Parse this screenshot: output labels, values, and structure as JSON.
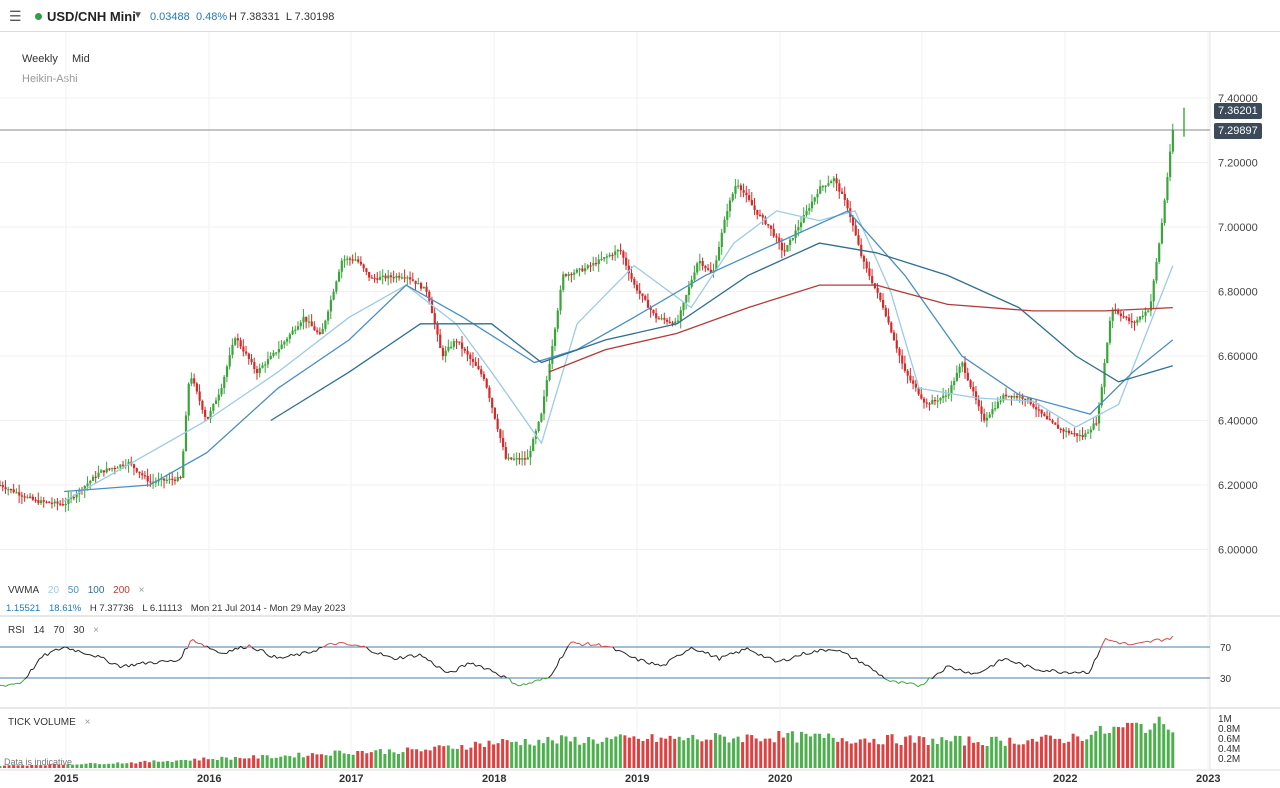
{
  "header": {
    "symbol": "USD/CNH Mini",
    "change": "0.03488",
    "change_pct": "0.48%",
    "high": "H 7.38331",
    "low": "L 7.30198",
    "menu_icon": "hamburger-icon",
    "accent": "#2ea043"
  },
  "chart_opts": {
    "interval": "Weekly",
    "price_type": "Mid",
    "style": "Heikin-Ashi"
  },
  "price_pills": {
    "high": "7.36201",
    "last": "7.29897"
  },
  "vwma": {
    "name": "VWMA",
    "p1": "20",
    "p2": "50",
    "p3": "100",
    "p4": "200",
    "close_icon": "×",
    "stats": {
      "range": "1.15521",
      "range_pct": "18.61%",
      "high": "H 7.37736",
      "low": "L 6.11113",
      "dates": "Mon 21 Jul 2014 - Mon 29 May 2023"
    }
  },
  "rsi": {
    "name": "RSI",
    "period": "14",
    "upper": "70",
    "lower": "30",
    "close_icon": "×"
  },
  "volume": {
    "name": "TICK VOLUME",
    "close_icon": "×",
    "disclaimer": "Data is indicative"
  },
  "chart_data": [
    {
      "type": "candlestick",
      "yticks": [
        "7.40000",
        "7.20000",
        "7.00000",
        "6.80000",
        "6.60000",
        "6.40000",
        "6.20000",
        "6.00000"
      ],
      "ylim": [
        5.95,
        7.45
      ],
      "xticks": [
        "2015",
        "2016",
        "2017",
        "2018",
        "2019",
        "2020",
        "2021",
        "2022",
        "2023"
      ],
      "price_keypoints": [
        [
          2014.55,
          6.2
        ],
        [
          2014.8,
          6.15
        ],
        [
          2015.0,
          6.14
        ],
        [
          2015.25,
          6.24
        ],
        [
          2015.45,
          6.27
        ],
        [
          2015.6,
          6.21
        ],
        [
          2015.82,
          6.22
        ],
        [
          2015.88,
          6.55
        ],
        [
          2016.0,
          6.4
        ],
        [
          2016.1,
          6.5
        ],
        [
          2016.2,
          6.66
        ],
        [
          2016.35,
          6.55
        ],
        [
          2016.5,
          6.62
        ],
        [
          2016.68,
          6.72
        ],
        [
          2016.8,
          6.66
        ],
        [
          2016.95,
          6.9
        ],
        [
          2017.05,
          6.9
        ],
        [
          2017.15,
          6.84
        ],
        [
          2017.4,
          6.85
        ],
        [
          2017.55,
          6.8
        ],
        [
          2017.65,
          6.6
        ],
        [
          2017.75,
          6.65
        ],
        [
          2017.95,
          6.53
        ],
        [
          2018.1,
          6.28
        ],
        [
          2018.25,
          6.28
        ],
        [
          2018.35,
          6.42
        ],
        [
          2018.5,
          6.85
        ],
        [
          2018.65,
          6.87
        ],
        [
          2018.9,
          6.93
        ],
        [
          2019.0,
          6.82
        ],
        [
          2019.15,
          6.72
        ],
        [
          2019.3,
          6.7
        ],
        [
          2019.45,
          6.9
        ],
        [
          2019.55,
          6.85
        ],
        [
          2019.65,
          7.05
        ],
        [
          2019.72,
          7.14
        ],
        [
          2019.85,
          7.05
        ],
        [
          2019.95,
          7.0
        ],
        [
          2020.05,
          6.92
        ],
        [
          2020.15,
          7.0
        ],
        [
          2020.3,
          7.12
        ],
        [
          2020.4,
          7.15
        ],
        [
          2020.5,
          7.06
        ],
        [
          2020.6,
          6.9
        ],
        [
          2020.75,
          6.75
        ],
        [
          2020.9,
          6.55
        ],
        [
          2021.05,
          6.45
        ],
        [
          2021.2,
          6.48
        ],
        [
          2021.3,
          6.58
        ],
        [
          2021.45,
          6.4
        ],
        [
          2021.6,
          6.48
        ],
        [
          2021.75,
          6.47
        ],
        [
          2021.9,
          6.4
        ],
        [
          2022.0,
          6.37
        ],
        [
          2022.15,
          6.35
        ],
        [
          2022.25,
          6.4
        ],
        [
          2022.35,
          6.75
        ],
        [
          2022.5,
          6.7
        ],
        [
          2022.62,
          6.75
        ],
        [
          2022.7,
          7.0
        ],
        [
          2022.78,
          7.3
        ]
      ]
    },
    {
      "type": "line",
      "name": "VWMA",
      "series": [
        {
          "period": "20",
          "color": "#9bcbe6",
          "points": [
            [
              2015.0,
              6.15
            ],
            [
              2016.0,
              6.4
            ],
            [
              2016.5,
              6.55
            ],
            [
              2017.0,
              6.72
            ],
            [
              2017.4,
              6.82
            ],
            [
              2017.75,
              6.7
            ],
            [
              2018.0,
              6.55
            ],
            [
              2018.35,
              6.33
            ],
            [
              2018.6,
              6.7
            ],
            [
              2019.0,
              6.88
            ],
            [
              2019.4,
              6.75
            ],
            [
              2019.7,
              6.95
            ],
            [
              2020.0,
              7.05
            ],
            [
              2020.3,
              7.02
            ],
            [
              2020.55,
              7.05
            ],
            [
              2020.8,
              6.8
            ],
            [
              2021.0,
              6.5
            ],
            [
              2021.4,
              6.47
            ],
            [
              2021.8,
              6.46
            ],
            [
              2022.1,
              6.38
            ],
            [
              2022.4,
              6.45
            ],
            [
              2022.78,
              6.88
            ]
          ]
        },
        {
          "period": "50",
          "color": "#4a8fc2",
          "points": [
            [
              2015.0,
              6.18
            ],
            [
              2015.6,
              6.2
            ],
            [
              2016.0,
              6.3
            ],
            [
              2016.5,
              6.5
            ],
            [
              2017.0,
              6.65
            ],
            [
              2017.4,
              6.82
            ],
            [
              2017.8,
              6.72
            ],
            [
              2018.3,
              6.58
            ],
            [
              2018.6,
              6.62
            ],
            [
              2019.0,
              6.72
            ],
            [
              2019.5,
              6.85
            ],
            [
              2020.0,
              6.95
            ],
            [
              2020.5,
              7.05
            ],
            [
              2020.9,
              6.85
            ],
            [
              2021.3,
              6.6
            ],
            [
              2021.7,
              6.48
            ],
            [
              2022.2,
              6.42
            ],
            [
              2022.5,
              6.55
            ],
            [
              2022.78,
              6.65
            ]
          ]
        },
        {
          "period": "100",
          "color": "#2f6f8f",
          "points": [
            [
              2016.45,
              6.4
            ],
            [
              2017.0,
              6.55
            ],
            [
              2017.5,
              6.7
            ],
            [
              2018.0,
              6.7
            ],
            [
              2018.35,
              6.58
            ],
            [
              2018.8,
              6.65
            ],
            [
              2019.3,
              6.7
            ],
            [
              2019.8,
              6.85
            ],
            [
              2020.3,
              6.95
            ],
            [
              2020.7,
              6.92
            ],
            [
              2021.2,
              6.85
            ],
            [
              2021.7,
              6.75
            ],
            [
              2022.1,
              6.6
            ],
            [
              2022.4,
              6.52
            ],
            [
              2022.78,
              6.57
            ]
          ]
        },
        {
          "period": "200",
          "color": "#b53a3a",
          "points": [
            [
              2018.4,
              6.55
            ],
            [
              2018.8,
              6.62
            ],
            [
              2019.3,
              6.67
            ],
            [
              2019.8,
              6.75
            ],
            [
              2020.3,
              6.82
            ],
            [
              2020.7,
              6.82
            ],
            [
              2021.2,
              6.76
            ],
            [
              2021.8,
              6.74
            ],
            [
              2022.3,
              6.74
            ],
            [
              2022.78,
              6.75
            ]
          ]
        }
      ]
    },
    {
      "type": "line",
      "name": "RSI",
      "yticks": [
        "70",
        "30"
      ],
      "ylim": [
        0,
        100
      ],
      "points": [
        [
          2014.55,
          20
        ],
        [
          2014.7,
          24
        ],
        [
          2014.85,
          58
        ],
        [
          2015.0,
          70
        ],
        [
          2015.2,
          60
        ],
        [
          2015.4,
          45
        ],
        [
          2015.6,
          50
        ],
        [
          2015.8,
          52
        ],
        [
          2015.9,
          80
        ],
        [
          2016.1,
          62
        ],
        [
          2016.3,
          72
        ],
        [
          2016.5,
          55
        ],
        [
          2016.7,
          62
        ],
        [
          2016.9,
          75
        ],
        [
          2017.1,
          70
        ],
        [
          2017.3,
          55
        ],
        [
          2017.5,
          60
        ],
        [
          2017.7,
          35
        ],
        [
          2017.85,
          50
        ],
        [
          2018.0,
          40
        ],
        [
          2018.2,
          20
        ],
        [
          2018.4,
          30
        ],
        [
          2018.55,
          75
        ],
        [
          2018.8,
          72
        ],
        [
          2019.0,
          55
        ],
        [
          2019.2,
          45
        ],
        [
          2019.4,
          70
        ],
        [
          2019.6,
          55
        ],
        [
          2019.8,
          68
        ],
        [
          2020.0,
          50
        ],
        [
          2020.2,
          62
        ],
        [
          2020.4,
          68
        ],
        [
          2020.6,
          50
        ],
        [
          2020.8,
          25
        ],
        [
          2021.0,
          20
        ],
        [
          2021.2,
          45
        ],
        [
          2021.4,
          35
        ],
        [
          2021.6,
          55
        ],
        [
          2021.8,
          42
        ],
        [
          2022.0,
          38
        ],
        [
          2022.2,
          38
        ],
        [
          2022.3,
          80
        ],
        [
          2022.5,
          72
        ],
        [
          2022.65,
          78
        ],
        [
          2022.78,
          82
        ]
      ]
    },
    {
      "type": "bar",
      "name": "TICK VOLUME",
      "yticks": [
        "1M",
        "0.8M",
        "0.6M",
        "0.4M",
        "0.2M"
      ],
      "ylim": [
        0,
        1000000
      ],
      "points": [
        [
          2014.55,
          50000
        ],
        [
          2015.0,
          80000
        ],
        [
          2015.5,
          120000
        ],
        [
          2016.0,
          200000
        ],
        [
          2016.5,
          250000
        ],
        [
          2017.0,
          350000
        ],
        [
          2017.5,
          380000
        ],
        [
          2018.0,
          550000
        ],
        [
          2018.5,
          600000
        ],
        [
          2019.0,
          620000
        ],
        [
          2019.5,
          640000
        ],
        [
          2020.0,
          680000
        ],
        [
          2020.5,
          640000
        ],
        [
          2021.0,
          600000
        ],
        [
          2021.5,
          580000
        ],
        [
          2022.0,
          620000
        ],
        [
          2022.5,
          900000
        ],
        [
          2022.78,
          950000
        ]
      ]
    }
  ]
}
